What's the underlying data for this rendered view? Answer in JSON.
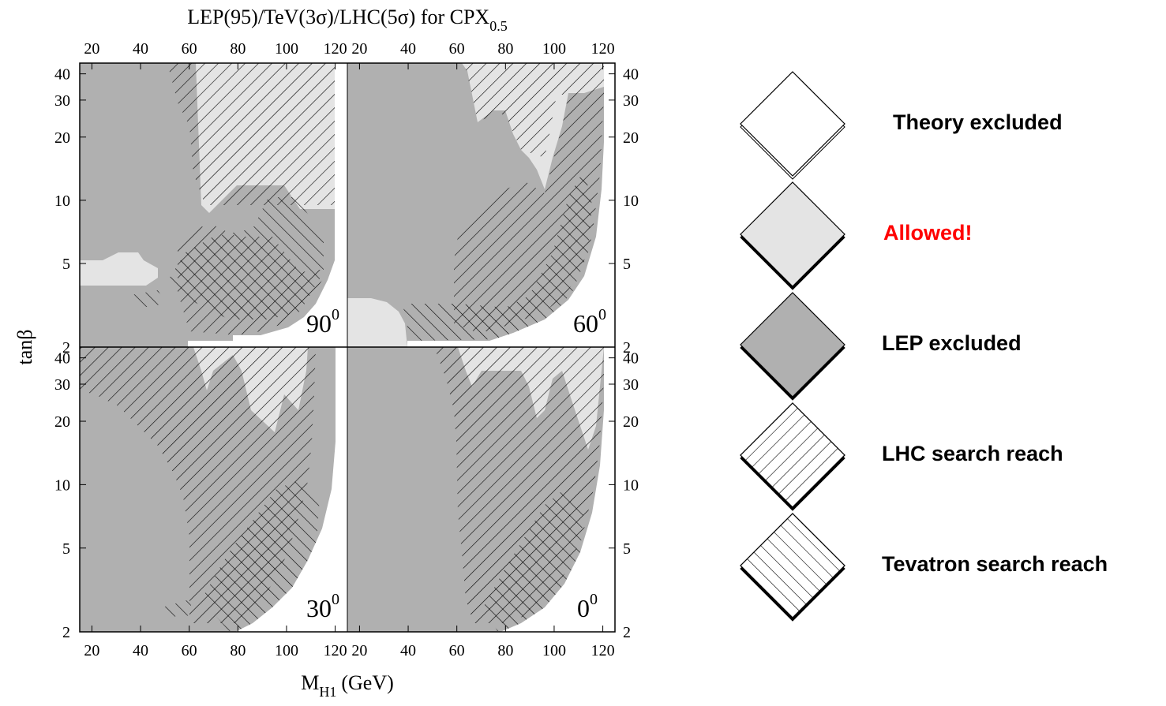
{
  "chart_data": {
    "type": "heatmap",
    "title_main": "LEP(95)/TeV(3σ)/LHC(5σ) for CPX",
    "title_sub": "0.5",
    "xlabel_main": "M",
    "xlabel_sub": "H1",
    "xlabel_unit": "(GeV)",
    "ylabel": "tanβ",
    "x_ticks": [
      20,
      40,
      60,
      80,
      100,
      120
    ],
    "y_ticks": [
      2,
      5,
      10,
      20,
      30,
      40
    ],
    "y_scale": "log",
    "xlim": [
      15,
      125
    ],
    "ylim": [
      2,
      45
    ],
    "panels": [
      {
        "position": "top-left",
        "phase": "90",
        "phase_sup": "0"
      },
      {
        "position": "top-right",
        "phase": "60",
        "phase_sup": "0"
      },
      {
        "position": "bottom-left",
        "phase": "30",
        "phase_sup": "0"
      },
      {
        "position": "bottom-right",
        "phase": "0",
        "phase_sup": "0"
      }
    ],
    "legend": [
      {
        "label": "Theory excluded",
        "fill": "#ffffff",
        "pattern": "none",
        "color": "#000000"
      },
      {
        "label": "Allowed!",
        "fill": "#e4e4e4",
        "pattern": "none",
        "color": "#ff0000"
      },
      {
        "label": "LEP excluded",
        "fill": "#b0b0b0",
        "pattern": "none",
        "color": "#000000"
      },
      {
        "label": "LHC search reach",
        "fill": "#ffffff",
        "pattern": "hatch-backslash",
        "color": "#000000"
      },
      {
        "label": "Tevatron search reach",
        "fill": "#ffffff",
        "pattern": "hatch-slash",
        "color": "#000000"
      }
    ],
    "colors": {
      "allowed": "#e4e4e4",
      "lep": "#b0b0b0",
      "theory": "#ffffff"
    }
  }
}
